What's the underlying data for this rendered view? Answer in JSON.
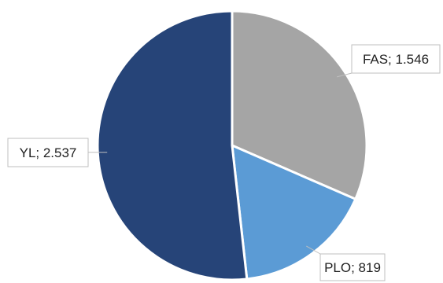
{
  "chart_data": {
    "type": "pie",
    "title": "",
    "categories": [
      "FAS",
      "PLO",
      "YL"
    ],
    "values": [
      1546,
      819,
      2537
    ],
    "labels": [
      "FAS; 1.546",
      "PLO; 819",
      "YL; 2.537"
    ],
    "colors": [
      "#a5a5a5",
      "#5b9bd5",
      "#264478"
    ],
    "start_angle_deg": 0,
    "direction": "clockwise",
    "legend": "none",
    "data_labels": "callouts"
  }
}
